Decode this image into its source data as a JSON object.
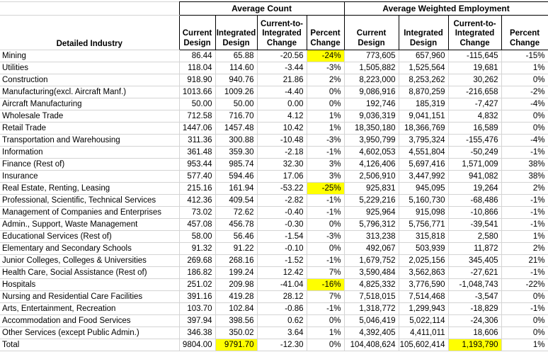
{
  "colors": {
    "highlight": "#ffff00",
    "gridline": "#d4d4d4",
    "header_border": "#000000",
    "text": "#000000",
    "background": "#ffffff"
  },
  "table_display": {
    "industry_header": "Detailed Industry",
    "group_headers": [
      "Average Count",
      "Average Weighted Employment"
    ],
    "sub_headers": [
      "Current\nDesign",
      "Integrated\nDesign",
      "Current-to-\nIntegrated\nChange",
      "Percent\nChange",
      "Current\nDesign",
      "Integrated\nDesign",
      "Current-to-\nIntegrated\nChange",
      "Percent\nChange"
    ]
  },
  "chart_data": {
    "type": "table",
    "title": "",
    "group_headers": [
      "Average Count",
      "Average Weighted Employment"
    ],
    "columns": [
      "Detailed Industry",
      "Current Design",
      "Integrated Design",
      "Current-to-Integrated Change",
      "Percent Change",
      "Current Design",
      "Integrated Design",
      "Current-to-Integrated Change",
      "Percent Change"
    ],
    "highlight_note": "highlights lists 0-based indexes into values[] of yellow-filled cells",
    "rows": [
      {
        "industry": "Mining",
        "values": [
          "86.44",
          "65.88",
          "-20.56",
          "-24%",
          "773,605",
          "657,960",
          "-115,645",
          "-15%"
        ],
        "highlights": [
          3
        ]
      },
      {
        "industry": "Utilities",
        "values": [
          "118.04",
          "114.60",
          "-3.44",
          "-3%",
          "1,505,882",
          "1,525,564",
          "19,681",
          "1%"
        ],
        "highlights": []
      },
      {
        "industry": "Construction",
        "values": [
          "918.90",
          "940.76",
          "21.86",
          "2%",
          "8,223,000",
          "8,253,262",
          "30,262",
          "0%"
        ],
        "highlights": []
      },
      {
        "industry": "Manufacturing(excl. Aircraft Manf.)",
        "values": [
          "1013.66",
          "1009.26",
          "-4.40",
          "0%",
          "9,086,916",
          "8,870,259",
          "-216,658",
          "-2%"
        ],
        "highlights": []
      },
      {
        "industry": "Aircraft Manufacturing",
        "values": [
          "50.00",
          "50.00",
          "0.00",
          "0%",
          "192,746",
          "185,319",
          "-7,427",
          "-4%"
        ],
        "highlights": []
      },
      {
        "industry": "Wholesale Trade",
        "values": [
          "712.58",
          "716.70",
          "4.12",
          "1%",
          "9,036,319",
          "9,041,151",
          "4,832",
          "0%"
        ],
        "highlights": []
      },
      {
        "industry": "Retail Trade",
        "values": [
          "1447.06",
          "1457.48",
          "10.42",
          "1%",
          "18,350,180",
          "18,366,769",
          "16,589",
          "0%"
        ],
        "highlights": []
      },
      {
        "industry": "Transportation and Warehousing",
        "values": [
          "311.36",
          "300.88",
          "-10.48",
          "-3%",
          "3,950,799",
          "3,795,324",
          "-155,476",
          "-4%"
        ],
        "highlights": []
      },
      {
        "industry": "Information",
        "values": [
          "361.48",
          "359.30",
          "-2.18",
          "-1%",
          "4,602,053",
          "4,551,804",
          "-50,249",
          "-1%"
        ],
        "highlights": []
      },
      {
        "industry": "Finance (Rest of)",
        "values": [
          "953.44",
          "985.74",
          "32.30",
          "3%",
          "4,126,406",
          "5,697,416",
          "1,571,009",
          "38%"
        ],
        "highlights": []
      },
      {
        "industry": "Insurance",
        "values": [
          "577.40",
          "594.46",
          "17.06",
          "3%",
          "2,506,910",
          "3,447,992",
          "941,082",
          "38%"
        ],
        "highlights": []
      },
      {
        "industry": "Real Estate, Renting, Leasing",
        "values": [
          "215.16",
          "161.94",
          "-53.22",
          "-25%",
          "925,831",
          "945,095",
          "19,264",
          "2%"
        ],
        "highlights": [
          3
        ]
      },
      {
        "industry": "Professional, Scientific, Technical Services",
        "values": [
          "412.36",
          "409.54",
          "-2.82",
          "-1%",
          "5,229,216",
          "5,160,730",
          "-68,486",
          "-1%"
        ],
        "highlights": []
      },
      {
        "industry": "Management of Companies and Enterprises",
        "values": [
          "73.02",
          "72.62",
          "-0.40",
          "-1%",
          "925,964",
          "915,098",
          "-10,866",
          "-1%"
        ],
        "highlights": []
      },
      {
        "industry": "Admin., Support, Waste Management",
        "values": [
          "457.08",
          "456.78",
          "-0.30",
          "0%",
          "5,796,312",
          "5,756,771",
          "-39,541",
          "-1%"
        ],
        "highlights": []
      },
      {
        "industry": "Educational Services (Rest of)",
        "values": [
          "58.00",
          "56.46",
          "-1.54",
          "-3%",
          "313,238",
          "315,818",
          "2,580",
          "1%"
        ],
        "highlights": []
      },
      {
        "industry": "Elementary and Secondary Schools",
        "values": [
          "91.32",
          "91.22",
          "-0.10",
          "0%",
          "492,067",
          "503,939",
          "11,872",
          "2%"
        ],
        "highlights": []
      },
      {
        "industry": "Junior Colleges, Colleges & Universities",
        "values": [
          "269.68",
          "268.16",
          "-1.52",
          "-1%",
          "1,679,752",
          "2,025,156",
          "345,405",
          "21%"
        ],
        "highlights": []
      },
      {
        "industry": "Health Care, Social Assistance (Rest of)",
        "values": [
          "186.82",
          "199.24",
          "12.42",
          "7%",
          "3,590,484",
          "3,562,863",
          "-27,621",
          "-1%"
        ],
        "highlights": []
      },
      {
        "industry": "Hospitals",
        "values": [
          "251.02",
          "209.98",
          "-41.04",
          "-16%",
          "4,825,332",
          "3,776,590",
          "-1,048,743",
          "-22%"
        ],
        "highlights": [
          3
        ]
      },
      {
        "industry": "Nursing and Residential Care Facilities",
        "values": [
          "391.16",
          "419.28",
          "28.12",
          "7%",
          "7,518,015",
          "7,514,468",
          "-3,547",
          "0%"
        ],
        "highlights": []
      },
      {
        "industry": "Arts, Entertainment, Recreation",
        "values": [
          "103.70",
          "102.84",
          "-0.86",
          "-1%",
          "1,318,772",
          "1,299,943",
          "-18,829",
          "-1%"
        ],
        "highlights": []
      },
      {
        "industry": "Accommodation and Food Services",
        "values": [
          "397.94",
          "398.56",
          "0.62",
          "0%",
          "5,046,419",
          "5,022,114",
          "-24,306",
          "0%"
        ],
        "highlights": []
      },
      {
        "industry": "Other Services (except Public Admin.)",
        "values": [
          "346.38",
          "350.02",
          "3.64",
          "1%",
          "4,392,405",
          "4,411,011",
          "18,606",
          "0%"
        ],
        "highlights": []
      },
      {
        "industry": "Total",
        "values": [
          "9804.00",
          "9791.70",
          "-12.30",
          "0%",
          "104,408,624",
          "105,602,414",
          "1,193,790",
          "1%"
        ],
        "highlights": [
          1,
          6
        ],
        "is_total": true
      }
    ]
  }
}
